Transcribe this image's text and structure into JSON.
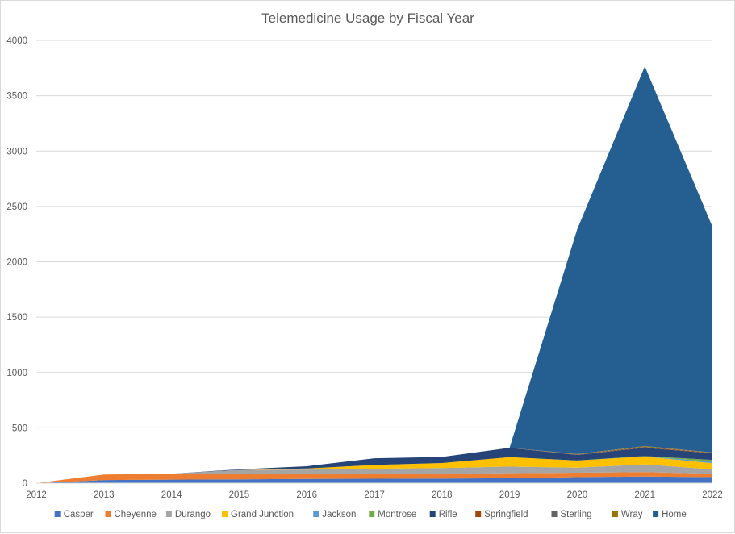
{
  "chart_data": {
    "type": "area",
    "stacked": true,
    "title": "Telemedicine Usage by Fiscal Year",
    "xlabel": "",
    "ylabel": "",
    "x": [
      "2012",
      "2013",
      "2014",
      "2015",
      "2016",
      "2017",
      "2018",
      "2019",
      "2020",
      "2021",
      "2022"
    ],
    "ylim": [
      0,
      4000
    ],
    "yticks": [
      0,
      500,
      1000,
      1500,
      2000,
      2500,
      3000,
      3500,
      4000
    ],
    "grid": true,
    "legend_position": "bottom",
    "series": [
      {
        "name": "Casper",
        "color": "#4472c4",
        "values": [
          0,
          28,
          32,
          35,
          38,
          40,
          42,
          45,
          55,
          60,
          55
        ]
      },
      {
        "name": "Cheyenne",
        "color": "#ed7d31",
        "values": [
          0,
          50,
          52,
          50,
          45,
          45,
          40,
          45,
          40,
          40,
          30
        ]
      },
      {
        "name": "Durango",
        "color": "#a5a5a5",
        "values": [
          0,
          0,
          2,
          35,
          40,
          45,
          55,
          60,
          45,
          70,
          40
        ]
      },
      {
        "name": "Grand Junction",
        "color": "#ffc000",
        "values": [
          0,
          0,
          0,
          0,
          10,
          35,
          45,
          85,
          65,
          70,
          55
        ]
      },
      {
        "name": "Jackson",
        "color": "#5b9bd5",
        "values": [
          0,
          0,
          0,
          0,
          0,
          0,
          0,
          0,
          0,
          0,
          15
        ]
      },
      {
        "name": "Montrose",
        "color": "#70ad47",
        "values": [
          0,
          0,
          0,
          0,
          0,
          0,
          0,
          0,
          0,
          5,
          15
        ]
      },
      {
        "name": "Rifle",
        "color": "#264478",
        "values": [
          0,
          0,
          0,
          5,
          20,
          60,
          55,
          85,
          50,
          75,
          60
        ]
      },
      {
        "name": "Springfield",
        "color": "#9e480e",
        "values": [
          0,
          0,
          0,
          0,
          0,
          0,
          0,
          0,
          3,
          5,
          3
        ]
      },
      {
        "name": "Sterling",
        "color": "#636363",
        "values": [
          0,
          0,
          0,
          0,
          0,
          0,
          0,
          0,
          3,
          5,
          3
        ]
      },
      {
        "name": "Wray",
        "color": "#997300",
        "values": [
          0,
          0,
          0,
          0,
          0,
          0,
          0,
          0,
          2,
          5,
          2
        ]
      },
      {
        "name": "Home",
        "color": "#255e91",
        "values": [
          0,
          0,
          0,
          0,
          0,
          0,
          0,
          0,
          2030,
          3430,
          2040
        ]
      }
    ]
  }
}
